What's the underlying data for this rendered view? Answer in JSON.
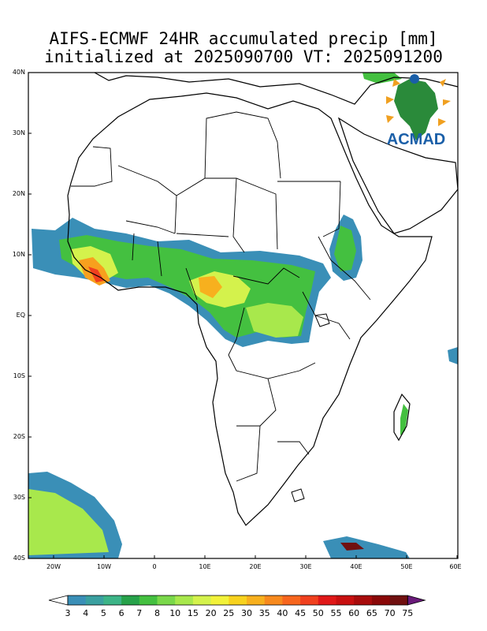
{
  "title_line1": "AIFS-ECMWF 24HR accumulated precip [mm]",
  "title_line2": "initialized at 2025090700 VT: 2025091200",
  "logo_text": "ACMAD",
  "lat_labels": [
    "40N",
    "30N",
    "20N",
    "10N",
    "EQ",
    "10S",
    "20S",
    "30S",
    "40S"
  ],
  "lon_labels": [
    "20W",
    "10W",
    "0",
    "10E",
    "20E",
    "30E",
    "40E",
    "50E",
    "60E"
  ],
  "colorbar": {
    "labels": [
      "3",
      "4",
      "5",
      "6",
      "7",
      "8",
      "10",
      "15",
      "20",
      "25",
      "30",
      "35",
      "40",
      "45",
      "50",
      "55",
      "60",
      "65",
      "70",
      "75"
    ],
    "colors": [
      "#3a8fb7",
      "#3aa0a0",
      "#3cb487",
      "#27a24a",
      "#44c040",
      "#7ad84a",
      "#a8e84c",
      "#d4f24c",
      "#f2f23a",
      "#f7d21e",
      "#f7b01e",
      "#f78a1e",
      "#f7661e",
      "#f0401e",
      "#e01818",
      "#c81010",
      "#a80c0c",
      "#8a0808",
      "#701010",
      "#6a1a7a"
    ]
  },
  "colors": {
    "frame": "#000000",
    "background": "#ffffff",
    "land_outline": "#000000"
  }
}
